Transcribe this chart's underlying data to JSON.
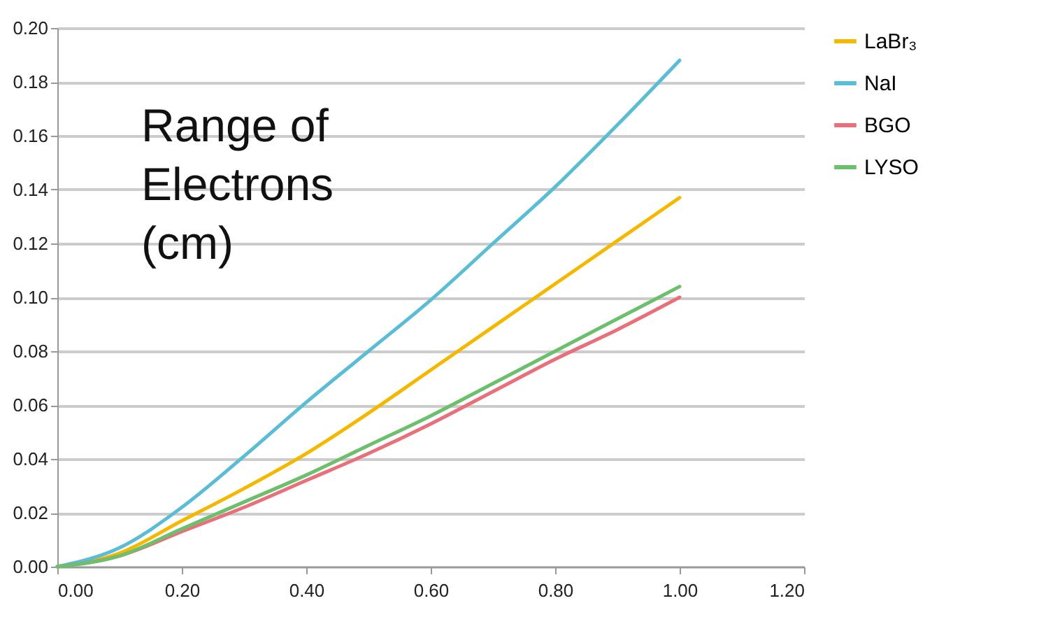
{
  "chart_data": {
    "type": "line",
    "annotations": [
      "Range of Electrons (cm)"
    ],
    "x": [
      0,
      0.1,
      0.2,
      0.3,
      0.4,
      0.5,
      0.6,
      0.7,
      0.8,
      0.9,
      1.0
    ],
    "series": [
      {
        "name": "LaBr₃",
        "color": "#f5b800",
        "values": [
          0,
          0.005,
          0.017,
          0.029,
          0.042,
          0.057,
          0.073,
          0.089,
          0.105,
          0.121,
          0.137
        ]
      },
      {
        "name": "NaI",
        "color": "#5bbcd6",
        "values": [
          0,
          0.007,
          0.022,
          0.041,
          0.061,
          0.08,
          0.099,
          0.12,
          0.141,
          0.164,
          0.188
        ]
      },
      {
        "name": "BGO",
        "color": "#e8707a",
        "values": [
          0,
          0.004,
          0.013,
          0.022,
          0.032,
          0.042,
          0.053,
          0.065,
          0.077,
          0.088,
          0.1
        ]
      },
      {
        "name": "LYSO",
        "color": "#6cbf6c",
        "values": [
          0,
          0.004,
          0.014,
          0.024,
          0.034,
          0.045,
          0.056,
          0.068,
          0.08,
          0.092,
          0.104
        ]
      }
    ],
    "xlim": [
      0,
      1.2
    ],
    "xticks": [
      {
        "value": 0,
        "label": "0.00"
      },
      {
        "value": 0.2,
        "label": "0.20"
      },
      {
        "value": 0.4,
        "label": "0.40"
      },
      {
        "value": 0.6,
        "label": "0.60"
      },
      {
        "value": 0.8,
        "label": "0.80"
      },
      {
        "value": 1.0,
        "label": "1.00"
      },
      {
        "value": 1.2,
        "label": "1.20"
      }
    ],
    "ylim": [
      0,
      0.2
    ],
    "yticks": [
      {
        "value": 0,
        "label": "0.00"
      },
      {
        "value": 0.02,
        "label": "0.02"
      },
      {
        "value": 0.04,
        "label": "0.04"
      },
      {
        "value": 0.06,
        "label": "0.06"
      },
      {
        "value": 0.08,
        "label": "0.08"
      },
      {
        "value": 0.1,
        "label": "0.10"
      },
      {
        "value": 0.12,
        "label": "0.12"
      },
      {
        "value": 0.14,
        "label": "0.14"
      },
      {
        "value": 0.16,
        "label": "0.16"
      },
      {
        "value": 0.18,
        "label": "0.18"
      },
      {
        "value": 0.2,
        "label": "0.20"
      }
    ],
    "grid": "y",
    "legend": "right",
    "line_style": "solid",
    "marker": "none"
  }
}
